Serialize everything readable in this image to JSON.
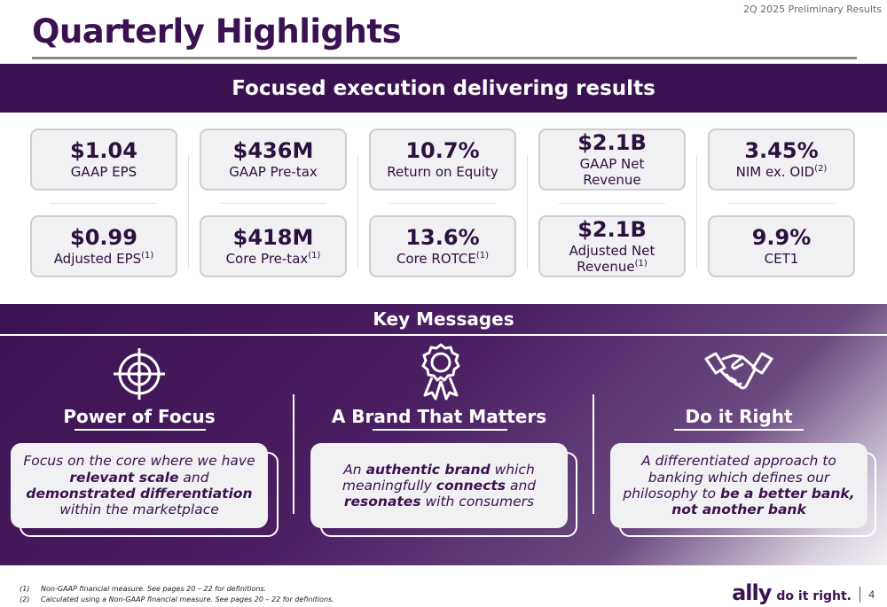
{
  "header": {
    "report_label": "2Q 2025 Preliminary Results",
    "title": "Quarterly Highlights"
  },
  "banner": {
    "text": "Focused execution delivering results"
  },
  "metrics": [
    {
      "value": "$1.04",
      "label": "GAAP EPS",
      "note": ""
    },
    {
      "value": "$436M",
      "label": "GAAP Pre-tax",
      "note": ""
    },
    {
      "value": "10.7%",
      "label": "Return on Equity",
      "note": ""
    },
    {
      "value": "$2.1B",
      "label": "GAAP Net Revenue",
      "note": ""
    },
    {
      "value": "3.45%",
      "label": "NIM ex. OID",
      "note": "(2)"
    },
    {
      "value": "$0.99",
      "label": "Adjusted EPS",
      "note": "(1)"
    },
    {
      "value": "$418M",
      "label": "Core Pre-tax",
      "note": "(1)"
    },
    {
      "value": "13.6%",
      "label": "Core ROTCE",
      "note": "(1)"
    },
    {
      "value": "$2.1B",
      "label": "Adjusted Net Revenue",
      "note": "(1)"
    },
    {
      "value": "9.9%",
      "label": "CET1",
      "note": ""
    }
  ],
  "key_messages": {
    "title": "Key Messages",
    "columns": [
      {
        "heading": "Power of Focus",
        "icon": "target-icon",
        "text_parts": [
          "Focus on the core where we have ",
          "relevant scale",
          " and ",
          "demonstrated differentiation",
          " within the marketplace"
        ]
      },
      {
        "heading": "A Brand That Matters",
        "icon": "award-ribbon-icon",
        "text_parts": [
          "An ",
          "authentic brand",
          " which meaningfully ",
          "connects",
          " and ",
          "resonates",
          " with consumers"
        ]
      },
      {
        "heading": "Do it Right",
        "icon": "handshake-icon",
        "text_parts": [
          "A differentiated approach to banking which defines our philosophy to ",
          "be a better bank, not another bank"
        ]
      }
    ]
  },
  "footnotes": [
    {
      "marker": "(1)",
      "text": "Non-GAAP financial measure. See pages 20 – 22 for definitions."
    },
    {
      "marker": "(2)",
      "text": "Calculated using a Non-GAAP financial measure. See pages 20 – 22 for definitions."
    }
  ],
  "branding": {
    "logo": "ally",
    "tagline": "do it right.",
    "page_number": "4"
  },
  "colors": {
    "primary": "#3b1251",
    "card_bg": "#f1f0f2",
    "card_border": "#cfcdd1"
  }
}
